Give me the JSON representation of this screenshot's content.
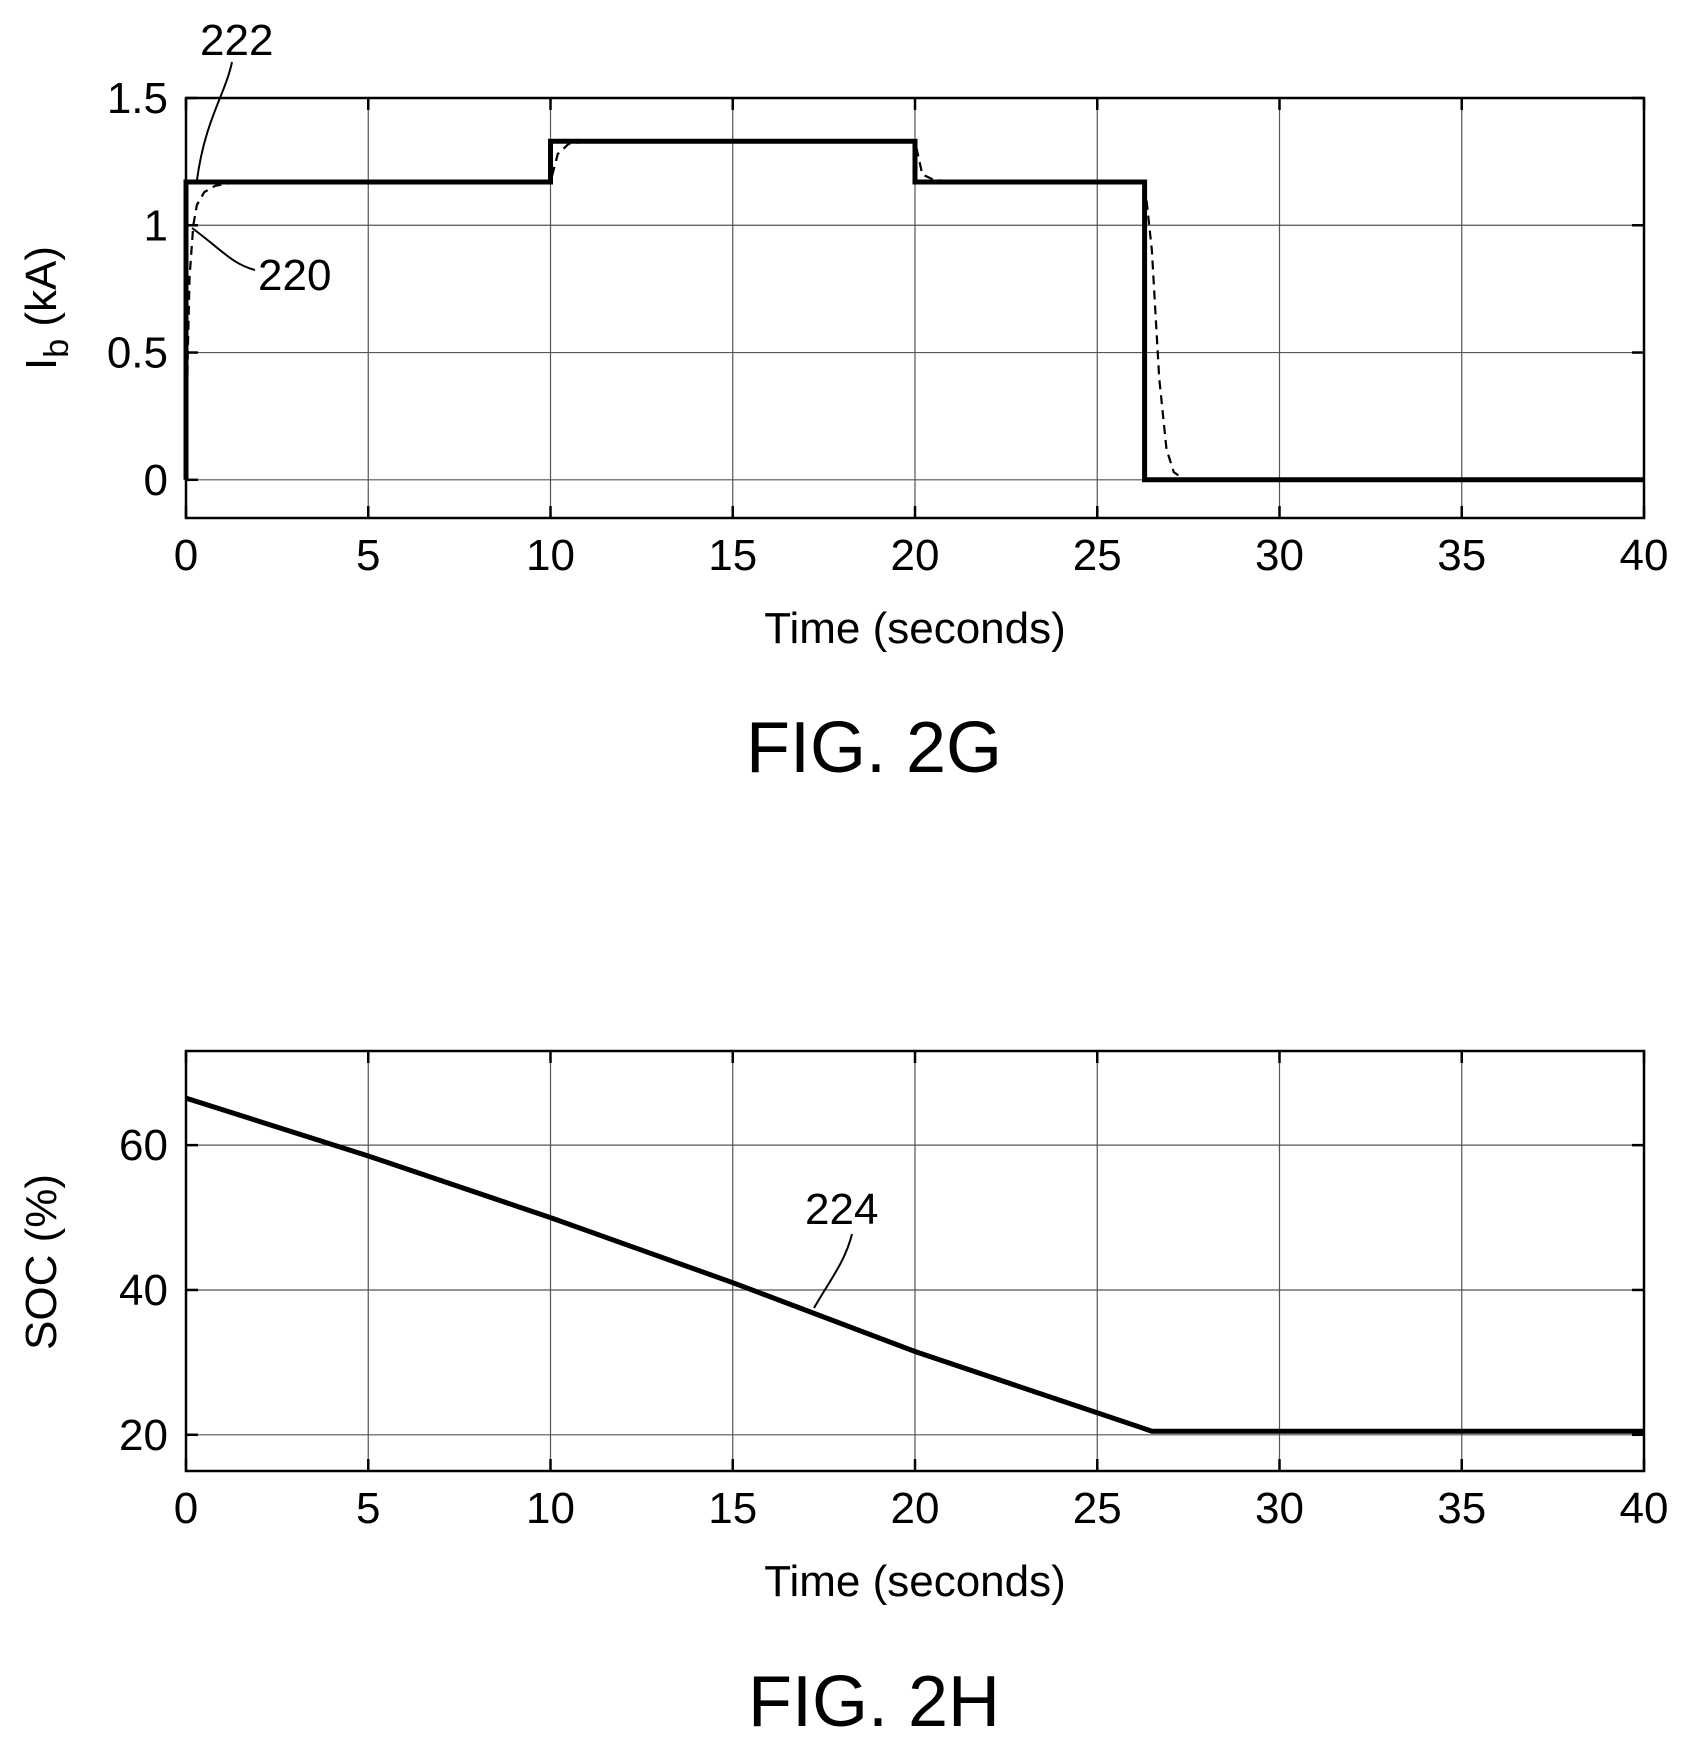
{
  "chart_data": [
    {
      "type": "line",
      "caption": "FIG. 2G",
      "xlabel": "Time (seconds)",
      "ylabel_main": "I",
      "ylabel_sub": "b",
      "ylabel_rest": " (kA)",
      "xlim": [
        0,
        40
      ],
      "ylim": [
        -0.15,
        1.5
      ],
      "xticks": [
        0,
        5,
        10,
        15,
        20,
        25,
        30,
        35,
        40
      ],
      "xtick_labels": [
        "0",
        "5",
        "10",
        "15",
        "20",
        "25",
        "30",
        "35",
        "40"
      ],
      "yticks": [
        0,
        0.5,
        1,
        1.5
      ],
      "ytick_labels": [
        "0",
        "0.5",
        "1",
        "1.5"
      ],
      "grid": true,
      "series": [
        {
          "name": "222",
          "style": "solid",
          "x": [
            0,
            0,
            10,
            10,
            20,
            20,
            26.3,
            26.3,
            40
          ],
          "y": [
            0,
            1.17,
            1.17,
            1.33,
            1.33,
            1.17,
            1.17,
            0,
            0
          ]
        },
        {
          "name": "220",
          "style": "dashed",
          "x": [
            0,
            0.05,
            0.1,
            0.2,
            0.3,
            0.5,
            0.8,
            1.2,
            2,
            10,
            10.2,
            10.5,
            11,
            20,
            20.2,
            20.5,
            21,
            26.3,
            26.5,
            26.7,
            26.9,
            27.1,
            27.4,
            40
          ],
          "y": [
            0,
            0.5,
            0.8,
            1.0,
            1.08,
            1.13,
            1.155,
            1.165,
            1.17,
            1.17,
            1.28,
            1.32,
            1.33,
            1.33,
            1.2,
            1.18,
            1.17,
            1.17,
            0.9,
            0.4,
            0.12,
            0.03,
            0.0,
            0.0
          ]
        }
      ]
    },
    {
      "type": "line",
      "caption": "FIG. 2H",
      "xlabel": "Time (seconds)",
      "ylabel": "SOC (%)",
      "xlim": [
        0,
        40
      ],
      "ylim": [
        15,
        73
      ],
      "xticks": [
        0,
        5,
        10,
        15,
        20,
        25,
        30,
        35,
        40
      ],
      "xtick_labels": [
        "0",
        "5",
        "10",
        "15",
        "20",
        "25",
        "30",
        "35",
        "40"
      ],
      "yticks": [
        20,
        40,
        60
      ],
      "ytick_labels": [
        "20",
        "40",
        "60"
      ],
      "grid": true,
      "series": [
        {
          "name": "224",
          "style": "solid",
          "x": [
            0,
            5,
            10,
            15,
            20,
            26.5,
            40
          ],
          "y": [
            66.5,
            58.5,
            50,
            41,
            31.5,
            20.5,
            20.5
          ]
        }
      ]
    }
  ]
}
